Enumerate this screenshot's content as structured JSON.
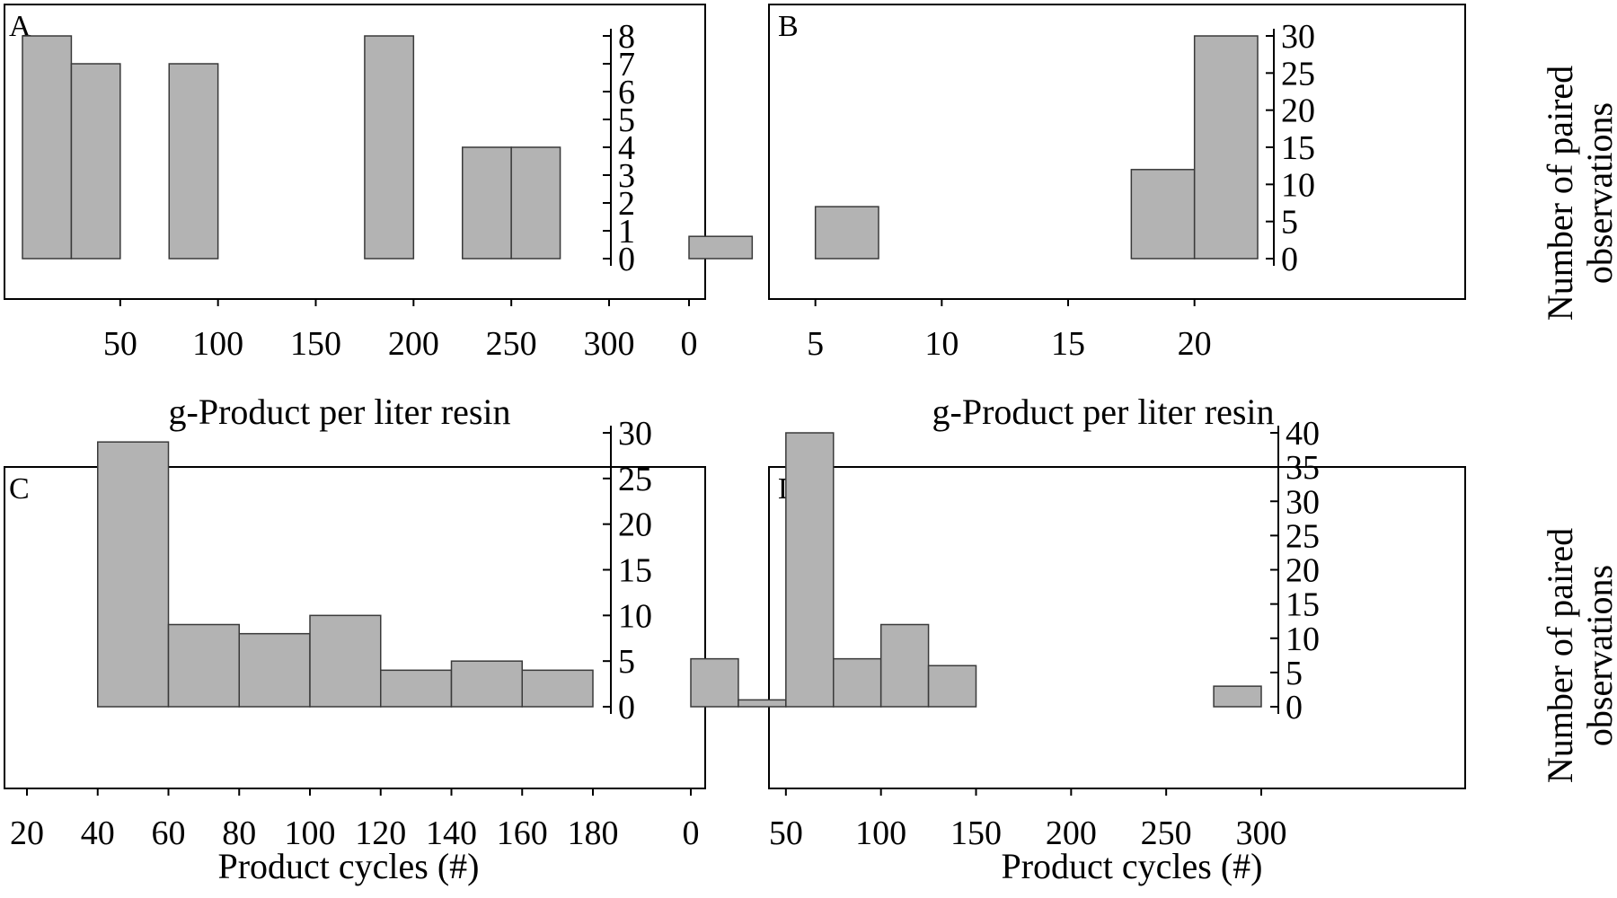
{
  "figure": {
    "y_axis_title_lines": [
      "Number of paired",
      "observations"
    ]
  },
  "chart_data": [
    {
      "type": "bar",
      "panel": "A",
      "xlabel": "g-Product per liter resin",
      "ylabel": "",
      "xlim": [
        0,
        300
      ],
      "ylim": [
        0,
        8
      ],
      "x_ticks": [
        50,
        100,
        150,
        200,
        250,
        300
      ],
      "y_ticks": [
        0,
        1,
        2,
        3,
        4,
        5,
        6,
        7,
        8
      ],
      "bins": [
        {
          "x0": 0,
          "x1": 25,
          "value": 8
        },
        {
          "x0": 25,
          "x1": 50,
          "value": 7
        },
        {
          "x0": 75,
          "x1": 100,
          "value": 7
        },
        {
          "x0": 175,
          "x1": 200,
          "value": 8
        },
        {
          "x0": 225,
          "x1": 250,
          "value": 4
        },
        {
          "x0": 250,
          "x1": 275,
          "value": 4
        }
      ]
    },
    {
      "type": "bar",
      "panel": "B",
      "xlabel": "g-Product per liter resin",
      "ylabel": "Number of paired observations",
      "xlim": [
        0,
        22.5
      ],
      "ylim": [
        0,
        30
      ],
      "x_ticks": [
        0,
        5,
        10,
        15,
        20
      ],
      "y_ticks": [
        0,
        5,
        10,
        15,
        20,
        25,
        30
      ],
      "bins": [
        {
          "x0": 0,
          "x1": 2.5,
          "value": 3
        },
        {
          "x0": 5,
          "x1": 7.5,
          "value": 7
        },
        {
          "x0": 17.5,
          "x1": 20,
          "value": 12
        },
        {
          "x0": 20,
          "x1": 22.5,
          "value": 30
        }
      ]
    },
    {
      "type": "bar",
      "panel": "C",
      "xlabel": "Product cycles (#)",
      "ylabel": "",
      "xlim": [
        20,
        180
      ],
      "ylim": [
        0,
        30
      ],
      "x_ticks": [
        20,
        40,
        60,
        80,
        100,
        120,
        140,
        160,
        180
      ],
      "y_ticks": [
        0,
        5,
        10,
        15,
        20,
        25,
        30
      ],
      "bins": [
        {
          "x0": 40,
          "x1": 60,
          "value": 29
        },
        {
          "x0": 60,
          "x1": 80,
          "value": 9
        },
        {
          "x0": 80,
          "x1": 100,
          "value": 8
        },
        {
          "x0": 100,
          "x1": 120,
          "value": 10
        },
        {
          "x0": 120,
          "x1": 140,
          "value": 4
        },
        {
          "x0": 140,
          "x1": 160,
          "value": 5
        },
        {
          "x0": 160,
          "x1": 180,
          "value": 4
        }
      ]
    },
    {
      "type": "bar",
      "panel": "D",
      "xlabel": "Product cycles (#)",
      "ylabel": "Number of paired observations",
      "xlim": [
        0,
        300
      ],
      "ylim": [
        0,
        40
      ],
      "x_ticks": [
        0,
        50,
        100,
        150,
        200,
        250,
        300
      ],
      "y_ticks": [
        0,
        5,
        10,
        15,
        20,
        25,
        30,
        35,
        40
      ],
      "bins": [
        {
          "x0": 0,
          "x1": 25,
          "value": 7
        },
        {
          "x0": 25,
          "x1": 50,
          "value": 1
        },
        {
          "x0": 50,
          "x1": 75,
          "value": 40
        },
        {
          "x0": 75,
          "x1": 100,
          "value": 7
        },
        {
          "x0": 100,
          "x1": 125,
          "value": 12
        },
        {
          "x0": 125,
          "x1": 150,
          "value": 6
        },
        {
          "x0": 275,
          "x1": 300,
          "value": 3
        }
      ]
    }
  ]
}
